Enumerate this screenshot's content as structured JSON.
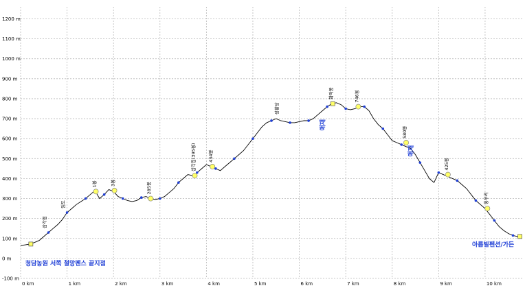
{
  "chart_data": {
    "type": "line",
    "xlabel": "",
    "ylabel": "",
    "xlim": [
      0,
      10.8
    ],
    "ylim": [
      -100,
      1260
    ],
    "grid": "dashed",
    "y_ticks": [
      -100,
      0,
      100,
      200,
      300,
      400,
      500,
      600,
      700,
      800,
      900,
      1000,
      1100,
      1200
    ],
    "y_tick_labels": [
      "-100 m",
      "0 m",
      "100 m",
      "200 m",
      "300 m",
      "400 m",
      "500 m",
      "600 m",
      "700 m",
      "800 m",
      "900 m",
      "1000 m",
      "1100 m",
      "1200 m"
    ],
    "x_ticks": [
      0,
      1,
      2,
      3,
      4,
      5,
      6,
      7,
      8,
      9,
      10
    ],
    "x_tick_labels": [
      "0 km",
      "1 km",
      "2 km",
      "3 km",
      "4 km",
      "5 km",
      "6 km",
      "7 km",
      "8 km",
      "9 km",
      "10 km"
    ],
    "series": [
      {
        "name": "",
        "color": "#000000",
        "x": [
          0.0,
          0.1,
          0.2,
          0.3,
          0.4,
          0.5,
          0.6,
          0.7,
          0.8,
          0.9,
          1.0,
          1.1,
          1.2,
          1.3,
          1.4,
          1.5,
          1.6,
          1.7,
          1.8,
          1.9,
          2.0,
          2.1,
          2.2,
          2.3,
          2.4,
          2.5,
          2.6,
          2.7,
          2.8,
          2.9,
          3.0,
          3.1,
          3.2,
          3.3,
          3.4,
          3.5,
          3.6,
          3.7,
          3.8,
          3.9,
          4.0,
          4.1,
          4.2,
          4.3,
          4.4,
          4.5,
          4.6,
          4.7,
          4.8,
          4.9,
          5.0,
          5.1,
          5.2,
          5.3,
          5.4,
          5.5,
          5.6,
          5.7,
          5.8,
          5.9,
          6.0,
          6.1,
          6.2,
          6.3,
          6.4,
          6.5,
          6.6,
          6.7,
          6.8,
          6.9,
          7.0,
          7.1,
          7.2,
          7.3,
          7.4,
          7.5,
          7.6,
          7.7,
          7.8,
          7.9,
          8.0,
          8.1,
          8.2,
          8.3,
          8.4,
          8.5,
          8.6,
          8.7,
          8.8,
          8.9,
          9.0,
          9.1,
          9.2,
          9.3,
          9.4,
          9.5,
          9.6,
          9.7,
          9.8,
          9.9,
          10.0,
          10.1,
          10.2,
          10.3,
          10.4,
          10.5,
          10.6,
          10.7,
          10.8
        ],
        "y": [
          65,
          68,
          72,
          80,
          90,
          110,
          130,
          150,
          170,
          195,
          230,
          250,
          270,
          285,
          300,
          320,
          340,
          300,
          320,
          345,
          335,
          310,
          300,
          290,
          285,
          290,
          305,
          310,
          300,
          295,
          300,
          310,
          330,
          350,
          380,
          400,
          420,
          415,
          430,
          450,
          470,
          460,
          450,
          440,
          460,
          480,
          500,
          520,
          540,
          570,
          600,
          630,
          660,
          680,
          690,
          700,
          690,
          685,
          680,
          680,
          685,
          690,
          690,
          700,
          720,
          740,
          760,
          775,
          780,
          770,
          750,
          745,
          750,
          760,
          760,
          740,
          700,
          670,
          650,
          620,
          590,
          580,
          570,
          560,
          550,
          520,
          480,
          440,
          400,
          380,
          430,
          420,
          410,
          400,
          390,
          370,
          350,
          320,
          290,
          270,
          250,
          220,
          190,
          160,
          140,
          125,
          115,
          110,
          110
        ]
      }
    ],
    "waypoints": [
      {
        "name": "청담농원 서쪽 철망펜스 끝지점",
        "x": 0.22,
        "y": 72,
        "marker": "square"
      },
      {
        "name": "아름빌펜션/가든",
        "x": 10.75,
        "y": 110,
        "marker": "square"
      },
      {
        "name": "화악봉",
        "x": 6.72,
        "y": 775,
        "marker": "square"
      },
      {
        "name": "1봉",
        "x": 1.62,
        "y": 335,
        "marker": "circle"
      },
      {
        "name": "3봉",
        "x": 2.02,
        "y": 340,
        "marker": "circle"
      },
      {
        "name": "285봉",
        "x": 2.8,
        "y": 300,
        "marker": "circle"
      },
      {
        "name": "삼각점(395봉)",
        "x": 3.75,
        "y": 415,
        "marker": "circle"
      },
      {
        "name": "434봉",
        "x": 4.13,
        "y": 460,
        "marker": "circle"
      },
      {
        "name": "746봉",
        "x": 7.27,
        "y": 760,
        "marker": "circle"
      },
      {
        "name": "580봉",
        "x": 8.3,
        "y": 580,
        "marker": "circle"
      },
      {
        "name": "425봉",
        "x": 9.2,
        "y": 420,
        "marker": "circle"
      },
      {
        "name": "풍우리",
        "x": 10.05,
        "y": 250,
        "marker": "circle"
      }
    ],
    "annotations": [
      "청담농원 서쪽 철망펜스 끝지점",
      "임도",
      "삼각점",
      "1봉",
      "3봉",
      "285봉",
      "삼각점(395봉)",
      "434봉",
      "성황당",
      "화악봉",
      "746봉",
      "580봉",
      "425봉",
      "풍우리",
      "아름빌펜션/가든"
    ],
    "side_labels": [
      "애재",
      "애재"
    ]
  }
}
